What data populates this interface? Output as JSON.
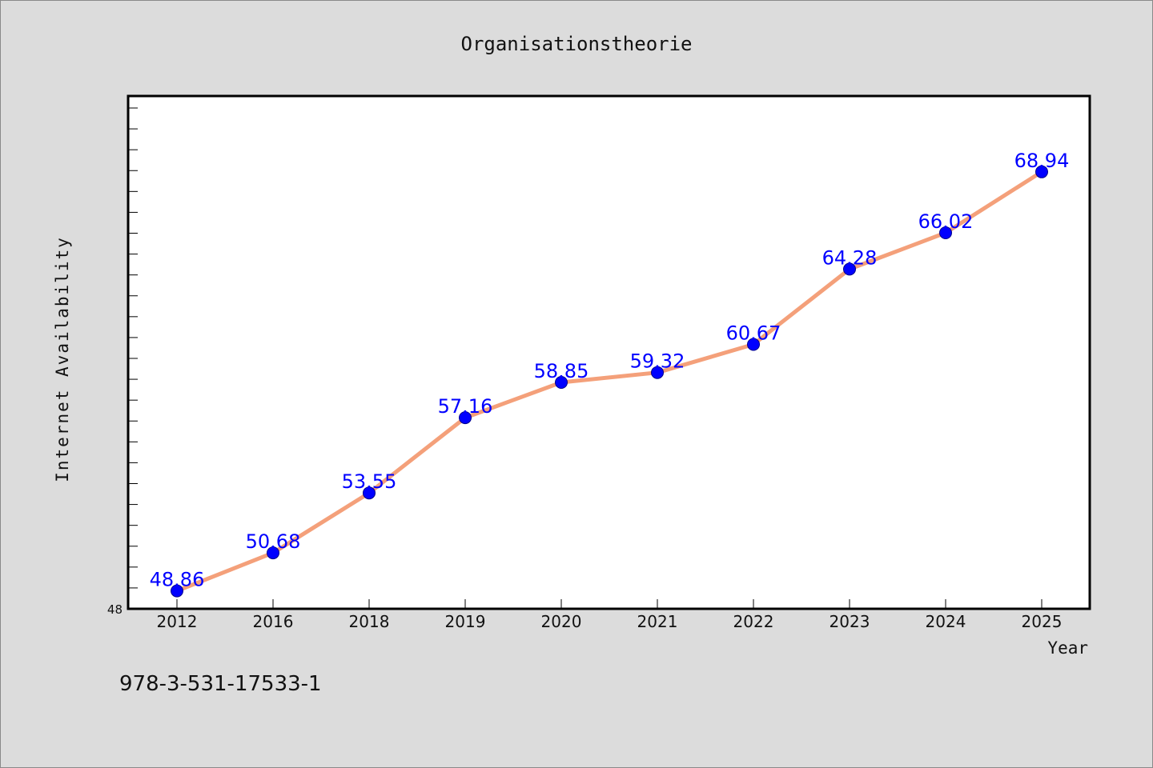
{
  "colors": {
    "line": "#f4a07a",
    "marker": "#0000ff",
    "labels": "#0000ff"
  },
  "chart_data": {
    "type": "line",
    "title": "Organisationstheorie",
    "xlabel": "Year",
    "ylabel": "Internet Availability",
    "categories": [
      "2012",
      "2016",
      "2018",
      "2019",
      "2020",
      "2021",
      "2022",
      "2023",
      "2024",
      "2025"
    ],
    "values": [
      48.86,
      50.68,
      53.55,
      57.16,
      58.85,
      59.32,
      60.67,
      64.28,
      66.02,
      68.94
    ],
    "data_labels": [
      "48.86",
      "50.68",
      "53.55",
      "57.16",
      "58.85",
      "59.32",
      "60.67",
      "64.28",
      "66.02",
      "68.94"
    ],
    "y_min_label": "48",
    "ylim": [
      48,
      72
    ],
    "y_minor_tick_step": 1,
    "grid": false,
    "legend": "none"
  },
  "footer": {
    "isbn": "978-3-531-17533-1"
  }
}
